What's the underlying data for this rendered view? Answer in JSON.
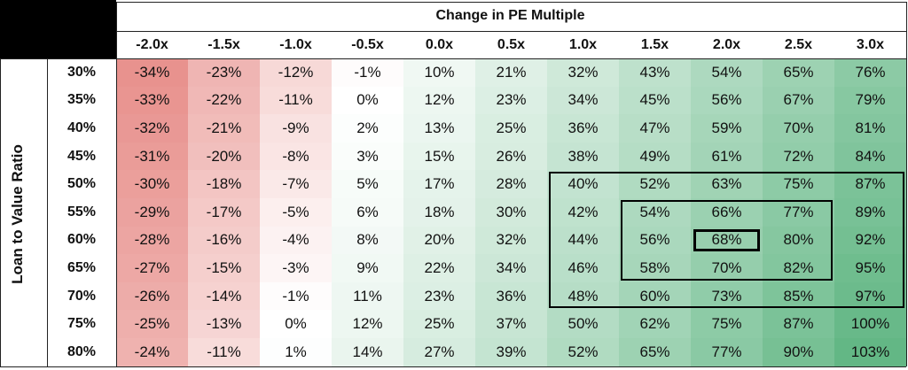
{
  "chart_data": {
    "type": "heatmap",
    "title": "Change in PE Multiple",
    "ylabel": "Loan to Value Ratio",
    "x_categories": [
      "-2.0x",
      "-1.5x",
      "-1.0x",
      "-0.5x",
      "0.0x",
      "0.5x",
      "1.0x",
      "1.5x",
      "2.0x",
      "2.5x",
      "3.0x"
    ],
    "y_categories": [
      "30%",
      "35%",
      "40%",
      "45%",
      "50%",
      "55%",
      "60%",
      "65%",
      "70%",
      "75%",
      "80%"
    ],
    "values": [
      [
        "-34%",
        "-23%",
        "-12%",
        "-1%",
        "10%",
        "21%",
        "32%",
        "43%",
        "54%",
        "65%",
        "76%"
      ],
      [
        "-33%",
        "-22%",
        "-11%",
        "0%",
        "12%",
        "23%",
        "34%",
        "45%",
        "56%",
        "67%",
        "79%"
      ],
      [
        "-32%",
        "-21%",
        "-9%",
        "2%",
        "13%",
        "25%",
        "36%",
        "47%",
        "59%",
        "70%",
        "81%"
      ],
      [
        "-31%",
        "-20%",
        "-8%",
        "3%",
        "15%",
        "26%",
        "38%",
        "49%",
        "61%",
        "72%",
        "84%"
      ],
      [
        "-30%",
        "-18%",
        "-7%",
        "5%",
        "17%",
        "28%",
        "40%",
        "52%",
        "63%",
        "75%",
        "87%"
      ],
      [
        "-29%",
        "-17%",
        "-5%",
        "6%",
        "18%",
        "30%",
        "42%",
        "54%",
        "66%",
        "77%",
        "89%"
      ],
      [
        "-28%",
        "-16%",
        "-4%",
        "8%",
        "20%",
        "32%",
        "44%",
        "56%",
        "68%",
        "80%",
        "92%"
      ],
      [
        "-27%",
        "-15%",
        "-3%",
        "9%",
        "22%",
        "34%",
        "46%",
        "58%",
        "70%",
        "82%",
        "95%"
      ],
      [
        "-26%",
        "-14%",
        "-1%",
        "11%",
        "23%",
        "36%",
        "48%",
        "60%",
        "73%",
        "85%",
        "97%"
      ],
      [
        "-25%",
        "-13%",
        "0%",
        "12%",
        "25%",
        "37%",
        "50%",
        "62%",
        "75%",
        "87%",
        "100%"
      ],
      [
        "-24%",
        "-11%",
        "1%",
        "14%",
        "27%",
        "39%",
        "52%",
        "65%",
        "77%",
        "90%",
        "103%"
      ]
    ],
    "color_scale": {
      "negative": "#e8928e",
      "neutral": "#ffffff",
      "positive": "#63b785"
    },
    "highlight_boxes": [
      {
        "rows": [
          "50%",
          "70%"
        ],
        "cols": [
          "1.0x",
          "3.0x"
        ],
        "style": "thin"
      },
      {
        "rows": [
          "55%",
          "65%"
        ],
        "cols": [
          "1.5x",
          "2.5x"
        ],
        "style": "thin"
      },
      {
        "rows": [
          "60%",
          "60%"
        ],
        "cols": [
          "2.0x",
          "2.0x"
        ],
        "style": "thick"
      }
    ]
  }
}
